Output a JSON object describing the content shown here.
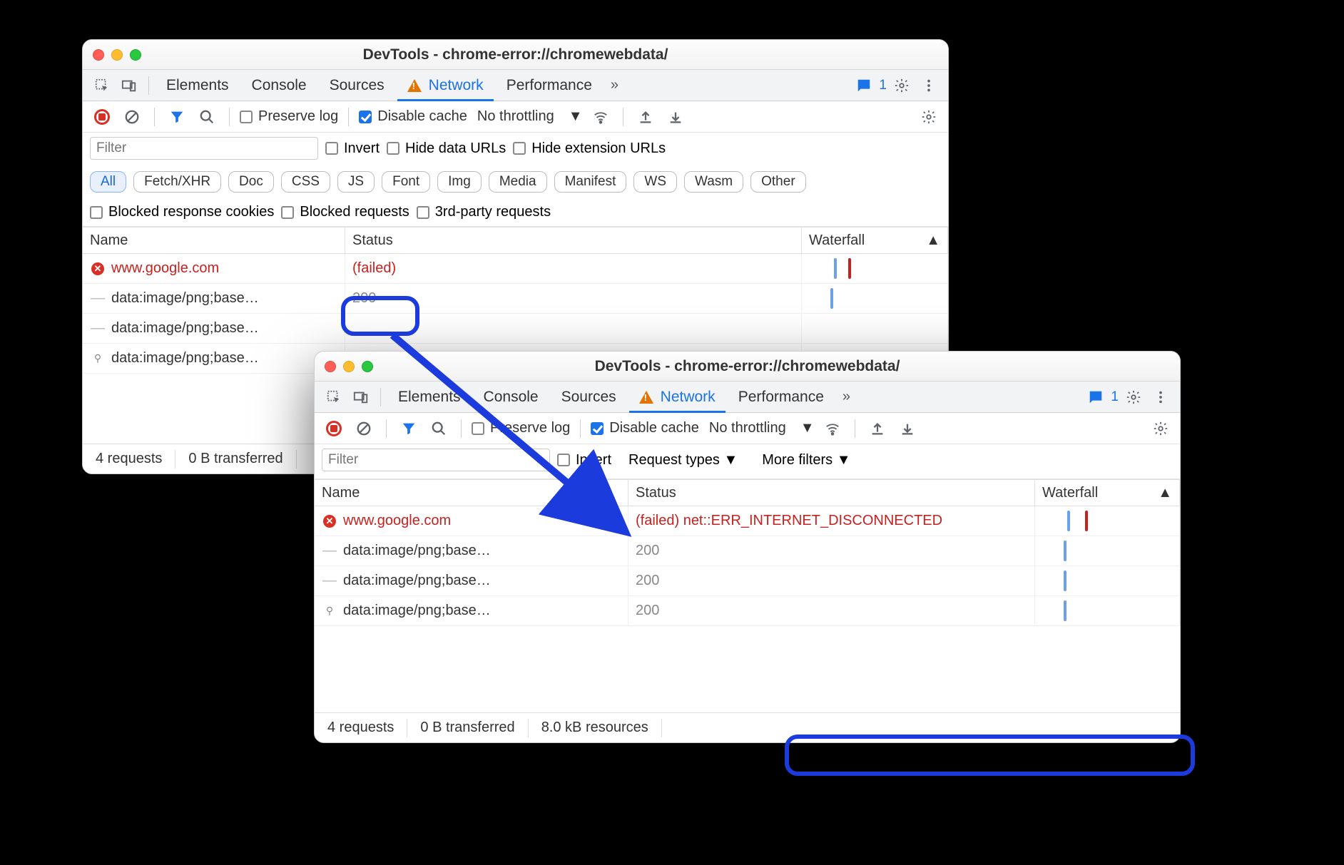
{
  "colors": {
    "accent": "#1a73e8",
    "error": "#c5221f",
    "warn_triangle": "#e37400",
    "annot": "#1c3bdc",
    "grey": "#888888",
    "wf_blue": "#6aa1e8",
    "wf_red": "#c5221f"
  },
  "window1": {
    "title": "DevTools - chrome-error://chromewebdata/",
    "tabs": {
      "elements": "Elements",
      "console": "Console",
      "sources": "Sources",
      "network": "Network",
      "performance": "Performance"
    },
    "issue_count": "1",
    "subbar": {
      "preserve_log": "Preserve log",
      "disable_cache": "Disable cache",
      "throttling": "No throttling"
    },
    "filter": {
      "placeholder": "Filter",
      "invert": "Invert",
      "hide_data": "Hide data URLs",
      "hide_ext": "Hide extension URLs",
      "pills": [
        "All",
        "Fetch/XHR",
        "Doc",
        "CSS",
        "JS",
        "Font",
        "Img",
        "Media",
        "Manifest",
        "WS",
        "Wasm",
        "Other"
      ],
      "blocked_cookies": "Blocked response cookies",
      "blocked_req": "Blocked requests",
      "third_party": "3rd-party requests"
    },
    "columns": {
      "name": "Name",
      "status": "Status",
      "waterfall": "Waterfall"
    },
    "rows": [
      {
        "name": "www.google.com",
        "status": "(failed)",
        "err": true,
        "icon": "err",
        "wf": [
          {
            "c": "wf_blue",
            "x": 45
          },
          {
            "c": "wf_red",
            "x": 65
          }
        ]
      },
      {
        "name": "data:image/png;base…",
        "status": "200",
        "err": false,
        "icon": "dash",
        "wf": [
          {
            "c": "wf_blue",
            "x": 40
          }
        ]
      },
      {
        "name": "data:image/png;base…",
        "status": "",
        "err": false,
        "icon": "dash",
        "wf": []
      },
      {
        "name": "data:image/png;base…",
        "status": "",
        "err": false,
        "icon": "track",
        "wf": []
      }
    ],
    "footer": {
      "requests": "4 requests",
      "transferred": "0 B transferred"
    }
  },
  "window2": {
    "title": "DevTools - chrome-error://chromewebdata/",
    "tabs": {
      "elements": "Elements",
      "console": "Console",
      "sources": "Sources",
      "network": "Network",
      "performance": "Performance"
    },
    "issue_count": "1",
    "subbar": {
      "preserve_log": "Preserve log",
      "disable_cache": "Disable cache",
      "throttling": "No throttling"
    },
    "filter": {
      "placeholder": "Filter",
      "invert": "Invert",
      "request_types": "Request types",
      "more_filters": "More filters"
    },
    "columns": {
      "name": "Name",
      "status": "Status",
      "waterfall": "Waterfall"
    },
    "rows": [
      {
        "name": "www.google.com",
        "status": "(failed) net::ERR_INTERNET_DISCONNECTED",
        "err": true,
        "icon": "err",
        "wf": [
          {
            "c": "wf_blue",
            "x": 45
          },
          {
            "c": "wf_red",
            "x": 70
          }
        ]
      },
      {
        "name": "data:image/png;base…",
        "status": "200",
        "err": false,
        "icon": "dash",
        "wf": [
          {
            "c": "wf_blue",
            "x": 40
          }
        ]
      },
      {
        "name": "data:image/png;base…",
        "status": "200",
        "err": false,
        "icon": "dash",
        "wf": [
          {
            "c": "wf_blue",
            "x": 40
          }
        ]
      },
      {
        "name": "data:image/png;base…",
        "status": "200",
        "err": false,
        "icon": "track",
        "wf": [
          {
            "c": "wf_blue",
            "x": 40
          }
        ]
      }
    ],
    "footer": {
      "requests": "4 requests",
      "transferred": "0 B transferred",
      "resources": "8.0 kB resources"
    }
  }
}
